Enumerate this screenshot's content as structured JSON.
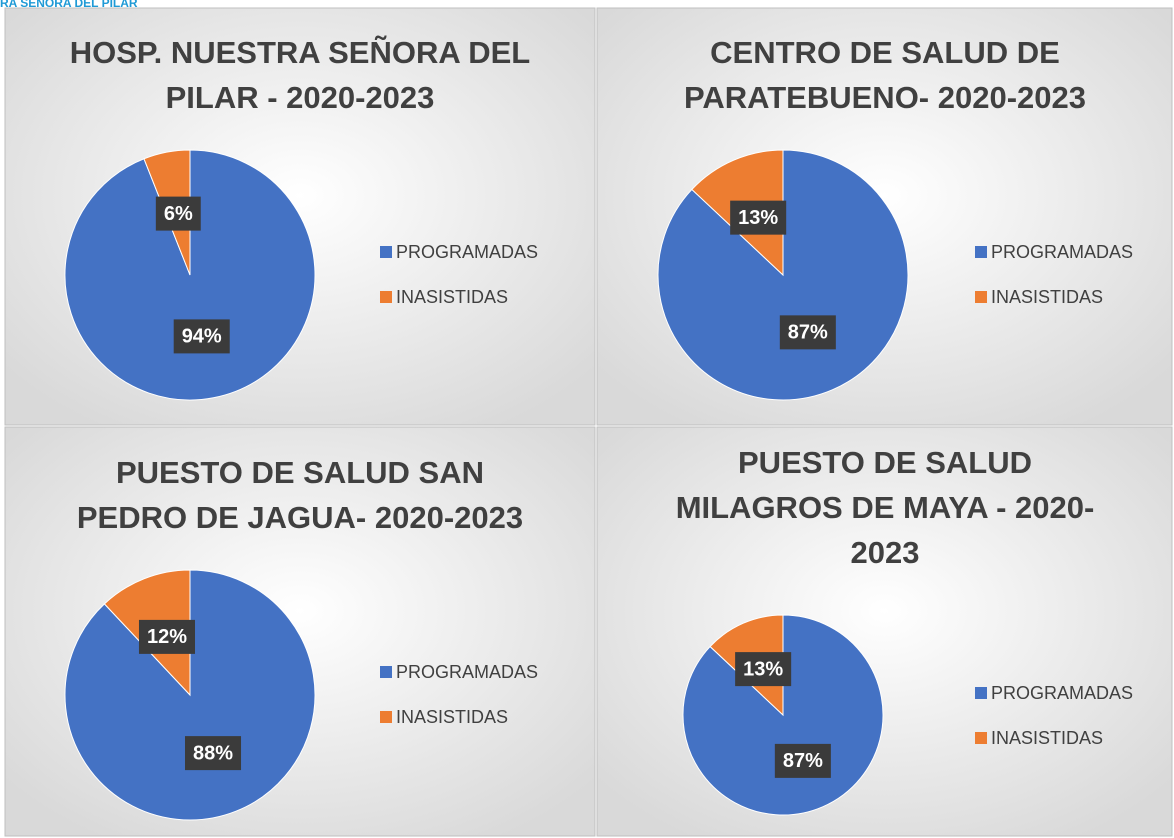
{
  "logo_text": "RA SEÑORA DEL PILAR",
  "chart_data": [
    {
      "type": "pie",
      "title": [
        "HOSP. NUESTRA SEÑORA DEL",
        "PILAR  - 2020-2023"
      ],
      "categories": [
        "PROGRAMADAS",
        "INASISTIDAS"
      ],
      "values": [
        94,
        6
      ],
      "value_labels": [
        "94%",
        "6%"
      ],
      "colors": [
        "#4472c4",
        "#ed7d31"
      ],
      "legend": "right"
    },
    {
      "type": "pie",
      "title": [
        "CENTRO DE SALUD DE",
        "PARATEBUENO- 2020-2023"
      ],
      "categories": [
        "PROGRAMADAS",
        "INASISTIDAS"
      ],
      "values": [
        87,
        13
      ],
      "value_labels": [
        "87%",
        "13%"
      ],
      "colors": [
        "#4472c4",
        "#ed7d31"
      ],
      "legend": "right"
    },
    {
      "type": "pie",
      "title": [
        "PUESTO DE SALUD  SAN",
        "PEDRO DE JAGUA- 2020-2023"
      ],
      "categories": [
        "PROGRAMADAS",
        "INASISTIDAS"
      ],
      "values": [
        88,
        12
      ],
      "value_labels": [
        "88%",
        "12%"
      ],
      "colors": [
        "#4472c4",
        "#ed7d31"
      ],
      "legend": "right"
    },
    {
      "type": "pie",
      "title": [
        "PUESTO DE SALUD",
        "MILAGROS DE MAYA - 2020-",
        "2023"
      ],
      "categories": [
        "PROGRAMADAS",
        "INASISTIDAS"
      ],
      "values": [
        87,
        13
      ],
      "value_labels": [
        "87%",
        "13%"
      ],
      "colors": [
        "#4472c4",
        "#ed7d31"
      ],
      "legend": "right"
    }
  ]
}
